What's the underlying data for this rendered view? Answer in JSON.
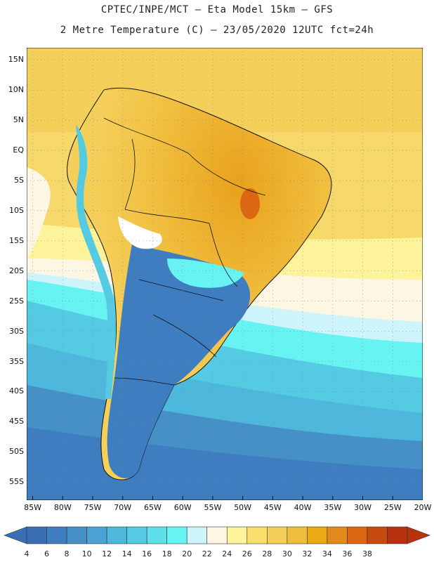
{
  "title": {
    "line1": "CPTEC/INPE/MCT –  Eta Model 15km – GFS",
    "line2": "2 Metre Temperature (C) – 23/05/2020 12UTC fct=24h"
  },
  "map": {
    "lon_range": [
      -86,
      -20
    ],
    "lat_range": [
      -58,
      17
    ],
    "lat_ticks": [
      {
        "lat": 15,
        "label": "15N"
      },
      {
        "lat": 10,
        "label": "10N"
      },
      {
        "lat": 5,
        "label": "5N"
      },
      {
        "lat": 0,
        "label": "EQ"
      },
      {
        "lat": -5,
        "label": "5S"
      },
      {
        "lat": -10,
        "label": "10S"
      },
      {
        "lat": -15,
        "label": "15S"
      },
      {
        "lat": -20,
        "label": "20S"
      },
      {
        "lat": -25,
        "label": "25S"
      },
      {
        "lat": -30,
        "label": "30S"
      },
      {
        "lat": -35,
        "label": "35S"
      },
      {
        "lat": -40,
        "label": "40S"
      },
      {
        "lat": -45,
        "label": "45S"
      },
      {
        "lat": -50,
        "label": "50S"
      },
      {
        "lat": -55,
        "label": "55S"
      }
    ],
    "lon_ticks": [
      {
        "lon": -85,
        "label": "85W"
      },
      {
        "lon": -80,
        "label": "80W"
      },
      {
        "lon": -75,
        "label": "75W"
      },
      {
        "lon": -70,
        "label": "70W"
      },
      {
        "lon": -65,
        "label": "65W"
      },
      {
        "lon": -60,
        "label": "60W"
      },
      {
        "lon": -55,
        "label": "55W"
      },
      {
        "lon": -50,
        "label": "50W"
      },
      {
        "lon": -45,
        "label": "45W"
      },
      {
        "lon": -40,
        "label": "40W"
      },
      {
        "lon": -35,
        "label": "35W"
      },
      {
        "lon": -30,
        "label": "30W"
      },
      {
        "lon": -25,
        "label": "25W"
      },
      {
        "lon": -20,
        "label": "20W"
      }
    ]
  },
  "colorbar": {
    "labels": [
      "4",
      "6",
      "8",
      "10",
      "12",
      "14",
      "16",
      "18",
      "20",
      "22",
      "24",
      "26",
      "28",
      "30",
      "32",
      "34",
      "36",
      "38"
    ],
    "colors": [
      "#3a6fb4",
      "#3d7dc0",
      "#4690c8",
      "#4aa3d2",
      "#4db7dc",
      "#55cbe3",
      "#5edfea",
      "#66f3f2",
      "#cef4fb",
      "#fdf6e3",
      "#fdf39a",
      "#f9e06d",
      "#f4cf5a",
      "#f0bd3f",
      "#eda818",
      "#e38a1d",
      "#dc6612",
      "#c84a0e",
      "#b83210"
    ]
  }
}
